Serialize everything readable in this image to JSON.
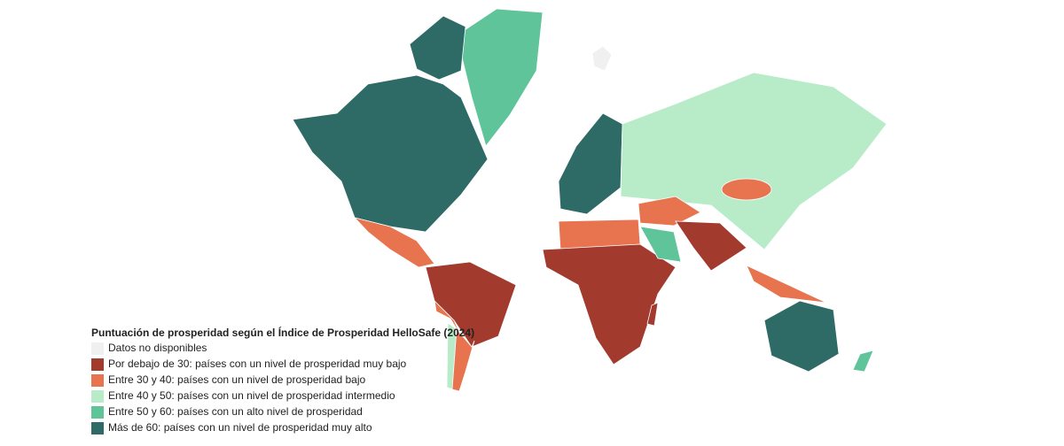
{
  "legend": {
    "title": "Puntuación de prosperidad según el Índice de Prosperidad HelloSafe (2024)",
    "items": [
      {
        "label": "Datos no disponibles",
        "color": "#f0f0f0"
      },
      {
        "label": "Por debajo de 30: países con un nivel de prosperidad muy bajo",
        "color": "#a33a2e"
      },
      {
        "label": "Entre 30 y 40: países con un nivel de prosperidad bajo",
        "color": "#e8734f"
      },
      {
        "label": "Entre 40 y 50: países con un nivel de prosperidad intermedio",
        "color": "#b8ecc8"
      },
      {
        "label": "Entre 50 y 60: países con un alto nivel de prosperidad",
        "color": "#5fc49a"
      },
      {
        "label": "Más de 60: países con un nivel de prosperidad muy alto",
        "color": "#2e6b66"
      }
    ]
  }
}
